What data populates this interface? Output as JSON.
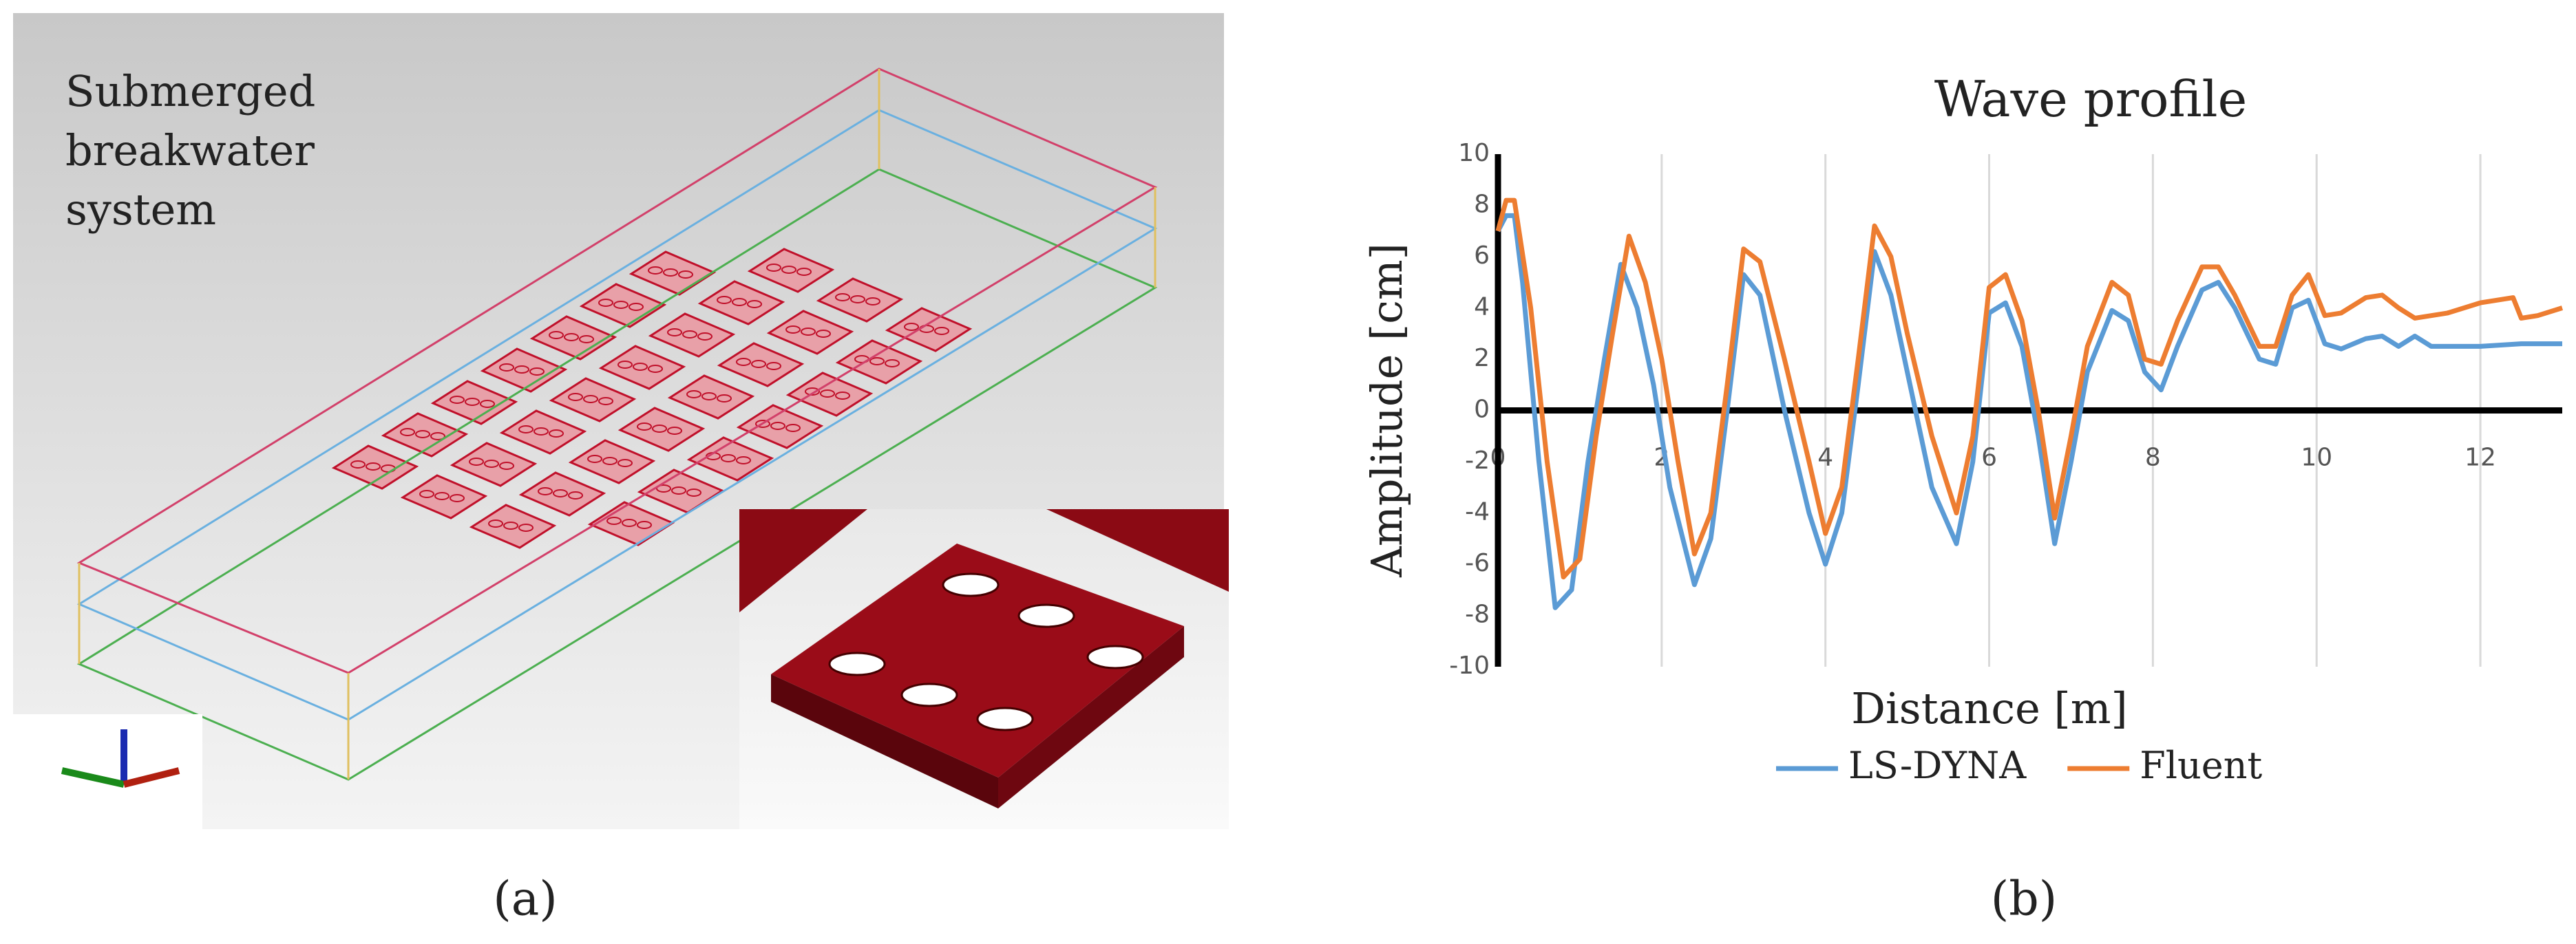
{
  "panel_a": {
    "label": [
      "Submerged",
      "breakwater",
      "system"
    ],
    "caption": "(a)"
  },
  "chart_data": {
    "type": "line",
    "title": "Wave profile",
    "xlabel": "Distance [m]",
    "ylabel": "Amplitude [cm]",
    "caption": "(b)",
    "xlim": [
      0,
      13
    ],
    "ylim": [
      -10,
      10
    ],
    "xticks": [
      0,
      2,
      4,
      6,
      8,
      10,
      12
    ],
    "yticks": [
      -10,
      -8,
      -6,
      -4,
      -2,
      0,
      2,
      4,
      6,
      8,
      10
    ],
    "grid": "x",
    "legend": "bottom",
    "series": [
      {
        "name": "LS-DYNA",
        "color": "#5b9bd5",
        "x": [
          0,
          0.1,
          0.2,
          0.3,
          0.5,
          0.7,
          0.9,
          1.1,
          1.3,
          1.5,
          1.7,
          1.9,
          2.1,
          2.4,
          2.6,
          2.8,
          3.0,
          3.2,
          3.5,
          3.8,
          4.0,
          4.2,
          4.4,
          4.6,
          4.8,
          5.0,
          5.3,
          5.6,
          5.8,
          6.0,
          6.2,
          6.4,
          6.6,
          6.8,
          7.0,
          7.2,
          7.5,
          7.7,
          7.9,
          8.1,
          8.3,
          8.6,
          8.8,
          9.0,
          9.3,
          9.5,
          9.7,
          9.9,
          10.1,
          10.3,
          10.6,
          10.8,
          11.0,
          11.2,
          11.4,
          12,
          12.5,
          13
        ],
        "values": [
          7,
          7.6,
          7.6,
          5,
          -2,
          -7.7,
          -7,
          -2,
          2,
          5.7,
          4,
          1,
          -3,
          -6.8,
          -5,
          0,
          5.3,
          4.5,
          0,
          -4,
          -6,
          -4,
          1,
          6.2,
          4.5,
          1.5,
          -3,
          -5.2,
          -2,
          3.8,
          4.2,
          2.5,
          -1,
          -5.2,
          -2,
          1.5,
          3.9,
          3.5,
          1.5,
          0.8,
          2.5,
          4.7,
          5,
          4,
          2,
          1.8,
          4,
          4.3,
          2.6,
          2.4,
          2.8,
          2.9,
          2.5,
          2.9,
          2.5,
          2.5,
          2.6,
          2.6
        ]
      },
      {
        "name": "Fluent",
        "color": "#ed7d31",
        "x": [
          0,
          0.1,
          0.2,
          0.4,
          0.6,
          0.8,
          1.0,
          1.2,
          1.4,
          1.6,
          1.8,
          2.0,
          2.2,
          2.4,
          2.6,
          2.8,
          3.0,
          3.2,
          3.5,
          3.8,
          4.0,
          4.2,
          4.4,
          4.6,
          4.8,
          5.0,
          5.3,
          5.6,
          5.8,
          6.0,
          6.2,
          6.4,
          6.6,
          6.8,
          7.0,
          7.2,
          7.5,
          7.7,
          7.9,
          8.1,
          8.3,
          8.6,
          8.8,
          9.0,
          9.3,
          9.5,
          9.7,
          9.9,
          10.1,
          10.3,
          10.6,
          10.8,
          11.0,
          11.2,
          11.6,
          12.0,
          12.4,
          12.5,
          12.7,
          13
        ],
        "values": [
          7,
          8.2,
          8.2,
          4,
          -2,
          -6.5,
          -5.8,
          -1,
          3,
          6.8,
          5,
          2,
          -2,
          -5.6,
          -4,
          1,
          6.3,
          5.8,
          2,
          -2,
          -4.8,
          -3,
          2,
          7.2,
          6,
          3,
          -1,
          -4,
          -1,
          4.8,
          5.3,
          3.5,
          0,
          -4.2,
          -1,
          2.5,
          5,
          4.5,
          2,
          1.8,
          3.5,
          5.6,
          5.6,
          4.5,
          2.5,
          2.5,
          4.5,
          5.3,
          3.7,
          3.8,
          4.4,
          4.5,
          4,
          3.6,
          3.8,
          4.2,
          4.4,
          3.6,
          3.7,
          4
        ]
      }
    ]
  }
}
